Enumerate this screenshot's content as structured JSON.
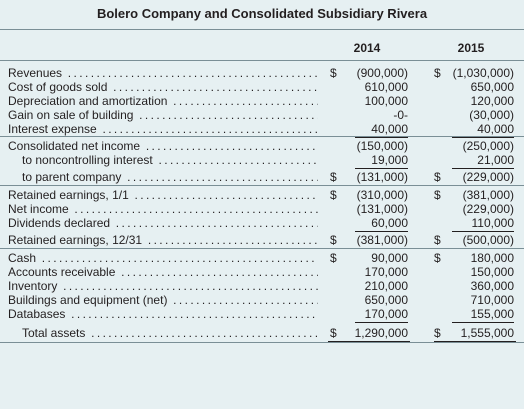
{
  "title": "Bolero Company and Consolidated Subsidiary Rivera",
  "columns": [
    "2014",
    "2015"
  ],
  "rows": [
    {
      "label": "Revenues",
      "indent": 0,
      "v1": {
        "sym": "$",
        "amt": "(900,000)"
      },
      "v2": {
        "sym": "$",
        "amt": "(1,030,000)"
      }
    },
    {
      "label": "Cost of goods sold",
      "indent": 0,
      "v1": {
        "sym": "",
        "amt": "610,000"
      },
      "v2": {
        "sym": "",
        "amt": "650,000"
      }
    },
    {
      "label": "Depreciation and amortization",
      "indent": 0,
      "v1": {
        "sym": "",
        "amt": "100,000"
      },
      "v2": {
        "sym": "",
        "amt": "120,000"
      }
    },
    {
      "label": "Gain on sale of building",
      "indent": 0,
      "v1": {
        "sym": "",
        "amt": "-0-"
      },
      "v2": {
        "sym": "",
        "amt": "(30,000)"
      }
    },
    {
      "label": "Interest expense",
      "indent": 0,
      "v1": {
        "sym": "",
        "amt": "40,000"
      },
      "v2": {
        "sym": "",
        "amt": "40,000"
      }
    },
    {
      "label": "Consolidated net income",
      "indent": 0,
      "v1": {
        "sym": "",
        "amt": "(150,000)"
      },
      "v2": {
        "sym": "",
        "amt": "(250,000)"
      }
    },
    {
      "label": "to noncontrolling interest",
      "indent": 1,
      "v1": {
        "sym": "",
        "amt": "19,000"
      },
      "v2": {
        "sym": "",
        "amt": "21,000"
      }
    },
    {
      "label": "to parent company",
      "indent": 1,
      "v1": {
        "sym": "$",
        "amt": "(131,000)"
      },
      "v2": {
        "sym": "$",
        "amt": "(229,000)"
      }
    },
    {
      "label": "Retained earnings, 1/1",
      "indent": 0,
      "v1": {
        "sym": "$",
        "amt": "(310,000)"
      },
      "v2": {
        "sym": "$",
        "amt": "(381,000)"
      }
    },
    {
      "label": "Net income",
      "indent": 0,
      "v1": {
        "sym": "",
        "amt": "(131,000)"
      },
      "v2": {
        "sym": "",
        "amt": "(229,000)"
      }
    },
    {
      "label": "Dividends declared",
      "indent": 0,
      "v1": {
        "sym": "",
        "amt": "60,000"
      },
      "v2": {
        "sym": "",
        "amt": "110,000"
      }
    },
    {
      "label": "Retained earnings, 12/31",
      "indent": 0,
      "v1": {
        "sym": "$",
        "amt": "(381,000)"
      },
      "v2": {
        "sym": "$",
        "amt": "(500,000)"
      }
    },
    {
      "label": "Cash",
      "indent": 0,
      "v1": {
        "sym": "$",
        "amt": "90,000"
      },
      "v2": {
        "sym": "$",
        "amt": "180,000"
      }
    },
    {
      "label": "Accounts receivable",
      "indent": 0,
      "v1": {
        "sym": "",
        "amt": "170,000"
      },
      "v2": {
        "sym": "",
        "amt": "150,000"
      }
    },
    {
      "label": "Inventory",
      "indent": 0,
      "v1": {
        "sym": "",
        "amt": "210,000"
      },
      "v2": {
        "sym": "",
        "amt": "360,000"
      }
    },
    {
      "label": "Buildings and equipment (net)",
      "indent": 0,
      "v1": {
        "sym": "",
        "amt": "650,000"
      },
      "v2": {
        "sym": "",
        "amt": "710,000"
      }
    },
    {
      "label": "Databases",
      "indent": 0,
      "v1": {
        "sym": "",
        "amt": "170,000"
      },
      "v2": {
        "sym": "",
        "amt": "155,000"
      }
    },
    {
      "label": "Total assets",
      "indent": 1,
      "v1": {
        "sym": "$",
        "amt": "1,290,000"
      },
      "v2": {
        "sym": "$",
        "amt": "1,555,000"
      }
    }
  ]
}
